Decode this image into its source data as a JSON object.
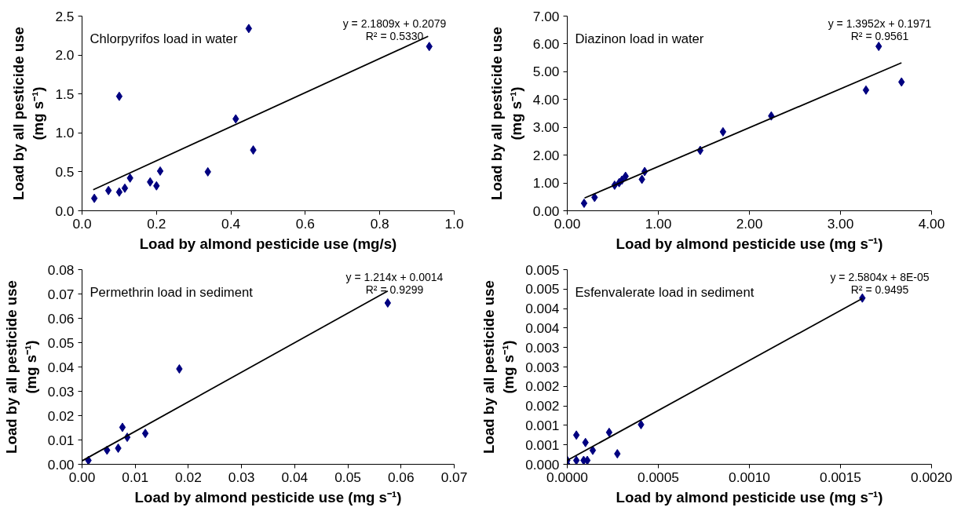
{
  "chart_data": [
    {
      "type": "scatter",
      "title": "Chlorpyrifos load in water",
      "annotations": [
        "y = 2.1809x + 0.2079",
        "R² = 0.5330"
      ],
      "xlabel": "Load by almond pesticide use (mg/s)",
      "ylabel": "Load by all pesticide use (mg s⁻¹)",
      "xlim": [
        0,
        1.0
      ],
      "ylim": [
        0,
        2.5
      ],
      "xticks": [
        {
          "value": 0,
          "label": "0.0"
        },
        {
          "value": 0.2,
          "label": "0.2"
        },
        {
          "value": 0.4,
          "label": "0.4"
        },
        {
          "value": 0.6,
          "label": "0.6"
        },
        {
          "value": 0.8,
          "label": "0.8"
        },
        {
          "value": 1.0,
          "label": "1.0"
        }
      ],
      "yticks": [
        {
          "value": 0,
          "label": "0.0"
        },
        {
          "value": 0.5,
          "label": "0.5"
        },
        {
          "value": 1.0,
          "label": "1.0"
        },
        {
          "value": 1.5,
          "label": "1.5"
        },
        {
          "value": 2.0,
          "label": "2.0"
        },
        {
          "value": 2.5,
          "label": "2.5"
        }
      ],
      "grid": false,
      "series": [
        {
          "type": "scatter",
          "marker": "diamond",
          "color": "#000080",
          "x": [
            0.033,
            0.071,
            0.1,
            0.115,
            0.129,
            0.1,
            0.183,
            0.2,
            0.21,
            0.338,
            0.413,
            0.448,
            0.46,
            0.933
          ],
          "values": [
            0.16,
            0.26,
            0.24,
            0.29,
            0.42,
            1.47,
            0.37,
            0.32,
            0.51,
            0.5,
            1.18,
            2.34,
            0.78,
            2.11
          ]
        },
        {
          "type": "line",
          "marker": "none",
          "color": "#000000",
          "x": [
            0.03,
            0.93
          ],
          "values": [
            0.27,
            2.24
          ]
        }
      ]
    },
    {
      "type": "scatter",
      "title": "Diazinon load in water",
      "annotations": [
        "y = 1.3952x + 0.1971",
        "R² = 0.9561"
      ],
      "xlabel": "Load by almond pesticide use (mg s⁻¹)",
      "ylabel": "Load by all pesticide use (mg s⁻¹)",
      "xlim": [
        0,
        4.0
      ],
      "ylim": [
        0,
        7.0
      ],
      "xticks": [
        {
          "value": 0,
          "label": "0.00"
        },
        {
          "value": 1,
          "label": "1.00"
        },
        {
          "value": 2,
          "label": "2.00"
        },
        {
          "value": 3,
          "label": "3.00"
        },
        {
          "value": 4,
          "label": "4.00"
        }
      ],
      "yticks": [
        {
          "value": 0,
          "label": "0.00"
        },
        {
          "value": 1,
          "label": "1.00"
        },
        {
          "value": 2,
          "label": "2.00"
        },
        {
          "value": 3,
          "label": "3.00"
        },
        {
          "value": 4,
          "label": "4.00"
        },
        {
          "value": 5,
          "label": "5.00"
        },
        {
          "value": 6,
          "label": "6.00"
        },
        {
          "value": 7,
          "label": "7.00"
        }
      ],
      "grid": false,
      "series": [
        {
          "type": "scatter",
          "marker": "diamond",
          "color": "#000080",
          "x": [
            0.185,
            0.3,
            0.52,
            0.57,
            0.6,
            0.64,
            0.82,
            0.85,
            1.46,
            1.71,
            2.24,
            3.28,
            3.42,
            3.67
          ],
          "values": [
            0.27,
            0.48,
            0.92,
            1.01,
            1.1,
            1.24,
            1.13,
            1.41,
            2.17,
            2.84,
            3.41,
            4.34,
            5.91,
            4.63
          ]
        },
        {
          "type": "line",
          "marker": "none",
          "color": "#000000",
          "x": [
            0.19,
            3.67
          ],
          "values": [
            0.46,
            5.32
          ]
        }
      ]
    },
    {
      "type": "scatter",
      "title": "Permethrin load in sediment",
      "annotations": [
        "y = 1.214x + 0.0014",
        "R² = 0.9299"
      ],
      "xlabel": "Load by almond pesticide use (mg s⁻¹)",
      "ylabel": "Load by all pesticide use (mg s⁻¹)",
      "xlim": [
        0,
        0.07
      ],
      "ylim": [
        0,
        0.08
      ],
      "xticks": [
        {
          "value": 0,
          "label": "0.00"
        },
        {
          "value": 0.01,
          "label": "0.01"
        },
        {
          "value": 0.02,
          "label": "0.02"
        },
        {
          "value": 0.03,
          "label": "0.03"
        },
        {
          "value": 0.04,
          "label": "0.04"
        },
        {
          "value": 0.05,
          "label": "0.05"
        },
        {
          "value": 0.06,
          "label": "0.06"
        },
        {
          "value": 0.07,
          "label": "0.07"
        }
      ],
      "yticks": [
        {
          "value": 0,
          "label": "0.00"
        },
        {
          "value": 0.01,
          "label": "0.01"
        },
        {
          "value": 0.02,
          "label": "0.02"
        },
        {
          "value": 0.03,
          "label": "0.03"
        },
        {
          "value": 0.04,
          "label": "0.04"
        },
        {
          "value": 0.05,
          "label": "0.05"
        },
        {
          "value": 0.06,
          "label": "0.06"
        },
        {
          "value": 0.07,
          "label": "0.07"
        },
        {
          "value": 0.08,
          "label": "0.08"
        }
      ],
      "grid": false,
      "series": [
        {
          "type": "scatter",
          "marker": "diamond",
          "color": "#000080",
          "x": [
            0.0012,
            0.0047,
            0.0068,
            0.0076,
            0.0085,
            0.0119,
            0.0183,
            0.0575
          ],
          "values": [
            0.0016,
            0.0058,
            0.0066,
            0.0152,
            0.0111,
            0.0127,
            0.0392,
            0.0663
          ]
        },
        {
          "type": "line",
          "marker": "none",
          "color": "#000000",
          "x": [
            0,
            0.0575
          ],
          "values": [
            0.0014,
            0.0712
          ]
        }
      ]
    },
    {
      "type": "scatter",
      "title": "Esfenvalerate load in sediment",
      "annotations": [
        "y = 2.5804x + 8E-05",
        "R² = 0.9495"
      ],
      "xlabel": "Load by almond pesticide use (mg s⁻¹)",
      "ylabel": "Load by all pesticide use (mg s⁻¹)",
      "xlim": [
        0,
        0.002
      ],
      "ylim": [
        0,
        0.005
      ],
      "xticks": [
        {
          "value": 0,
          "label": "0.0000"
        },
        {
          "value": 0.0005,
          "label": "0.0005"
        },
        {
          "value": 0.001,
          "label": "0.0010"
        },
        {
          "value": 0.0015,
          "label": "0.0015"
        },
        {
          "value": 0.002,
          "label": "0.0020"
        }
      ],
      "yticks": [
        {
          "value": 0,
          "label": "0.000"
        },
        {
          "value": 0.0005,
          "label": "0.001"
        },
        {
          "value": 0.001,
          "label": "0.001"
        },
        {
          "value": 0.0015,
          "label": "0.002"
        },
        {
          "value": 0.002,
          "label": "0.002"
        },
        {
          "value": 0.0025,
          "label": "0.003"
        },
        {
          "value": 0.003,
          "label": "0.003"
        },
        {
          "value": 0.0035,
          "label": "0.004"
        },
        {
          "value": 0.004,
          "label": "0.004"
        },
        {
          "value": 0.0045,
          "label": "0.005"
        },
        {
          "value": 0.005,
          "label": "0.005"
        }
      ],
      "grid": false,
      "series": [
        {
          "type": "scatter",
          "marker": "diamond",
          "color": "#000080",
          "x": [
            0,
            0,
            5e-05,
            5e-05,
            0.0001,
            9e-05,
            0.00011,
            0.00014,
            0.00023,
            0.000275,
            0.000405,
            0.00162
          ],
          "values": [
            0.0001,
            0,
            0.00075,
            0.0001,
            0.00056,
            0.0001,
            0.0001,
            0.00036,
            0.00082,
            0.00027,
            0.00102,
            0.00427
          ]
        },
        {
          "type": "line",
          "marker": "none",
          "color": "#000000",
          "x": [
            0,
            0.00162
          ],
          "values": [
            0.0001,
            0.00426
          ]
        }
      ]
    }
  ]
}
